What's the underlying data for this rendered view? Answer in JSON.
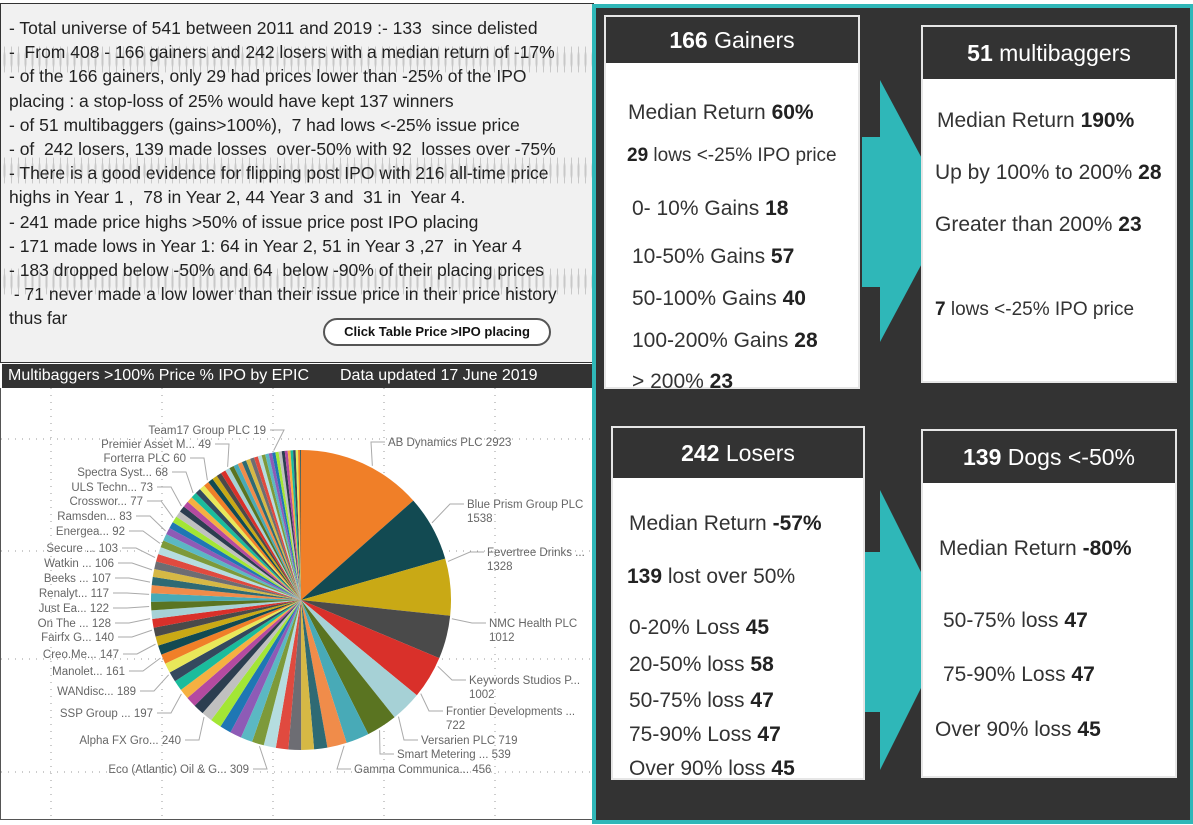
{
  "notes": {
    "lines": [
      "- Total universe of 541 between 2011 and 2019 :- 133  since delisted",
      "-  From 408 - 166 gainers and 242 losers with a median return of -17%",
      "- of the 166 gainers, only 29 had prices lower than -25% of the IPO",
      "placing : a stop-loss of 25% would have kept 137 winners",
      "- of 51 multibaggers (gains>100%),  7 had lows <-25% issue price",
      "- of  242 losers, 139 made losses  over-50% with 92  losses over -75%",
      "- There is a good evidence for flipping post IPO with 216 all-time price",
      "highs in Year 1 ,  78 in Year 2, 44 Year 3 and  31 in  Year 4.",
      "- 241 made price highs >50% of issue price post IPO placing",
      "- 171 made lows in Year 1: 64 in Year 2, 51 in Year 3 ,27  in Year 4",
      "- 183 dropped below -50% and 64  below -90% of their placing prices",
      " - 71 never made a low lower than their issue price in their price history",
      "thus far"
    ],
    "button_label": "Click Table Price >IPO placing"
  },
  "chart_header": {
    "title": "Multibaggers >100% Price % IPO by EPIC",
    "updated": "Data updated 17 June 2019"
  },
  "colors": {
    "teal_accent": "#2fb7b8",
    "dark_panel": "#333333",
    "pie_palette": [
      "#f07f28",
      "#124a52",
      "#c9a915",
      "#4a4a4a",
      "#d9302a",
      "#a6d1d6",
      "#5a7421",
      "#48aab7",
      "#f08c4a",
      "#2e6a74",
      "#d6b845",
      "#6d6d73",
      "#e04a3f",
      "#b5dde0",
      "#7d9a3a",
      "#5bb8c3",
      "#8e5bb6",
      "#1f77b4",
      "#a3e635",
      "#c0c0c0",
      "#2c3e50",
      "#b44aa0",
      "#f5b041",
      "#1abc9c",
      "#34495e",
      "#e8e85a"
    ]
  },
  "cards": {
    "gainers": {
      "head_num": "166",
      "head_text": " Gainers",
      "rows": [
        {
          "pre": "Median Return ",
          "bold": "60%",
          "post": ""
        },
        {
          "pre": "",
          "bold": "29",
          "post": " lows <-25% IPO price"
        },
        {
          "pre": "0- 10% Gains ",
          "bold": "18",
          "post": ""
        },
        {
          "pre": "10-50% Gains ",
          "bold": "57",
          "post": ""
        },
        {
          "pre": "50-100% Gains ",
          "bold": "40",
          "post": ""
        },
        {
          "pre": "100-200% Gains ",
          "bold": "28",
          "post": ""
        },
        {
          "pre": "> 200% ",
          "bold": "23",
          "post": ""
        }
      ]
    },
    "multibaggers": {
      "head_num": "51",
      "head_text": " multibaggers",
      "rows": [
        {
          "pre": "Median Return ",
          "bold": "190%",
          "post": ""
        },
        {
          "pre": "Up by 100% to 200% ",
          "bold": "28",
          "post": ""
        },
        {
          "pre": "Greater than 200% ",
          "bold": "23",
          "post": ""
        },
        {
          "pre": "",
          "bold": "7",
          "post": " lows <-25% IPO price"
        }
      ]
    },
    "losers": {
      "head_num": "242",
      "head_text": " Losers",
      "rows": [
        {
          "pre": "Median Return ",
          "bold": "-57%",
          "post": ""
        },
        {
          "pre": "",
          "bold": "139",
          "post": " lost over 50%"
        },
        {
          "pre": "0-20% Loss ",
          "bold": "45",
          "post": ""
        },
        {
          "pre": "20-50% loss ",
          "bold": "58",
          "post": ""
        },
        {
          "pre": "50-75% loss ",
          "bold": "47",
          "post": ""
        },
        {
          "pre": "75-90% Loss ",
          "bold": "47",
          "post": ""
        },
        {
          "pre": "Over 90% loss ",
          "bold": "45",
          "post": ""
        }
      ]
    },
    "dogs": {
      "head_num": "139",
      "head_text": " Dogs <-50%",
      "rows": [
        {
          "pre": "Median Return ",
          "bold": "-80%",
          "post": ""
        },
        {
          "pre": "50-75% loss ",
          "bold": "47",
          "post": ""
        },
        {
          "pre": "75-90% Loss ",
          "bold": "47",
          "post": ""
        },
        {
          "pre": "Over 90% loss ",
          "bold": "45",
          "post": ""
        }
      ]
    }
  },
  "chart_data": {
    "type": "pie",
    "title": "Multibaggers >100% Price % IPO by EPIC",
    "legend": "none",
    "slices": [
      {
        "label": "AB Dynamics PLC",
        "value": 2923
      },
      {
        "label": "Blue Prism Group PLC",
        "value": 1538
      },
      {
        "label": "Fevertree Drinks ...",
        "value": 1328
      },
      {
        "label": "NMC Health PLC",
        "value": 1012
      },
      {
        "label": "Keywords Studios P...",
        "value": 1002
      },
      {
        "label": "Frontier Developments ...",
        "value": 722
      },
      {
        "label": "Versarien PLC",
        "value": 719
      },
      {
        "label": "Smart Metering ...",
        "value": 539
      },
      {
        "label": "Gamma Communica...",
        "value": 456
      },
      {
        "label": "Eco (Atlantic) Oil & G...",
        "value": 309
      },
      {
        "label": "Alpha FX Gro...",
        "value": 240
      },
      {
        "label": "SSP Group ...",
        "value": 197
      },
      {
        "label": "WANdisc...",
        "value": 189
      },
      {
        "label": "Manolet...",
        "value": 161
      },
      {
        "label": "Creo.Me...",
        "value": 147
      },
      {
        "label": "Fairfx G...",
        "value": 140
      },
      {
        "label": "On The ...",
        "value": 128
      },
      {
        "label": "Just Ea...",
        "value": 122
      },
      {
        "label": "Renalyt...",
        "value": 117
      },
      {
        "label": "Beeks ...",
        "value": 107
      },
      {
        "label": "Watkin ...",
        "value": 106
      },
      {
        "label": "Secure ...",
        "value": 103
      },
      {
        "label": "Energea...",
        "value": 92
      },
      {
        "label": "Ramsden...",
        "value": 83
      },
      {
        "label": "Crosswor...",
        "value": 77
      },
      {
        "label": "ULS Techn...",
        "value": 73
      },
      {
        "label": "Spectra Syst...",
        "value": 68
      },
      {
        "label": "Forterra PLC",
        "value": 60
      },
      {
        "label": "Premier Asset M...",
        "value": 49
      },
      {
        "label": "Team17 Group PLC",
        "value": 19
      }
    ],
    "unlabeled_values": [
      300,
      295,
      290,
      285,
      280,
      275,
      270,
      265,
      260,
      255,
      250,
      245,
      240,
      235,
      230,
      225,
      220,
      215,
      210,
      205,
      200,
      195,
      190,
      185,
      180,
      175,
      170,
      165,
      160,
      155,
      150,
      145,
      140,
      135,
      130,
      125,
      120,
      115,
      110,
      105,
      100,
      95,
      90,
      85,
      80,
      75,
      70,
      65,
      60,
      55
    ]
  }
}
